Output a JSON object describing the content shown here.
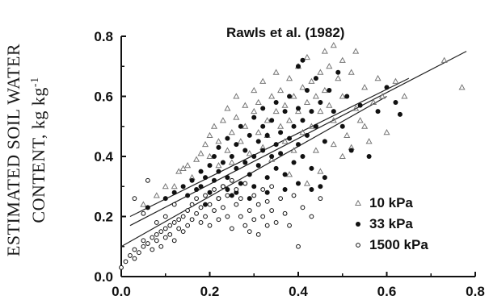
{
  "chart_data": {
    "type": "scatter",
    "title": "Rawls et al. (1982)",
    "ylabel_line1": "ESTIMATED SOIL WATER",
    "ylabel_line2_prefix": "CONTENT, kg kg",
    "ylabel_line2_sup": "-1",
    "xlabel": "",
    "xlim": [
      0.0,
      0.8
    ],
    "ylim": [
      0.0,
      0.8
    ],
    "x_ticks": [
      0.0,
      0.2,
      0.4,
      0.6,
      0.8
    ],
    "x_tick_labels": [
      "0.0",
      "0.2",
      "0.4",
      "0.6",
      "0.8"
    ],
    "y_ticks": [
      0.0,
      0.2,
      0.4,
      0.6,
      0.8
    ],
    "y_tick_labels": [
      "0.0",
      "0.2",
      "0.4",
      "0.6",
      "0.8"
    ],
    "grid": false,
    "legend_position": "bottom-right",
    "series": [
      {
        "name": "10 kPa",
        "marker": "triangle-open",
        "points": [
          [
            0.05,
            0.24
          ],
          [
            0.08,
            0.27
          ],
          [
            0.1,
            0.3
          ],
          [
            0.12,
            0.3
          ],
          [
            0.13,
            0.35
          ],
          [
            0.14,
            0.36
          ],
          [
            0.15,
            0.37
          ],
          [
            0.16,
            0.33
          ],
          [
            0.17,
            0.39
          ],
          [
            0.18,
            0.41
          ],
          [
            0.19,
            0.44
          ],
          [
            0.2,
            0.4
          ],
          [
            0.2,
            0.47
          ],
          [
            0.21,
            0.5
          ],
          [
            0.22,
            0.45
          ],
          [
            0.22,
            0.37
          ],
          [
            0.23,
            0.52
          ],
          [
            0.24,
            0.42
          ],
          [
            0.24,
            0.56
          ],
          [
            0.25,
            0.48
          ],
          [
            0.25,
            0.38
          ],
          [
            0.26,
            0.53
          ],
          [
            0.26,
            0.6
          ],
          [
            0.27,
            0.45
          ],
          [
            0.28,
            0.57
          ],
          [
            0.28,
            0.5
          ],
          [
            0.29,
            0.41
          ],
          [
            0.3,
            0.55
          ],
          [
            0.3,
            0.62
          ],
          [
            0.31,
            0.48
          ],
          [
            0.31,
            0.58
          ],
          [
            0.32,
            0.43
          ],
          [
            0.32,
            0.65
          ],
          [
            0.33,
            0.52
          ],
          [
            0.33,
            0.47
          ],
          [
            0.34,
            0.6
          ],
          [
            0.34,
            0.39
          ],
          [
            0.35,
            0.55
          ],
          [
            0.35,
            0.68
          ],
          [
            0.36,
            0.5
          ],
          [
            0.36,
            0.62
          ],
          [
            0.37,
            0.45
          ],
          [
            0.37,
            0.57
          ],
          [
            0.38,
            0.66
          ],
          [
            0.38,
            0.52
          ],
          [
            0.39,
            0.6
          ],
          [
            0.39,
            0.42
          ],
          [
            0.4,
            0.7
          ],
          [
            0.4,
            0.55
          ],
          [
            0.41,
            0.63
          ],
          [
            0.41,
            0.48
          ],
          [
            0.42,
            0.58
          ],
          [
            0.42,
            0.73
          ],
          [
            0.43,
            0.65
          ],
          [
            0.43,
            0.5
          ],
          [
            0.44,
            0.6
          ],
          [
            0.44,
            0.42
          ],
          [
            0.45,
            0.68
          ],
          [
            0.45,
            0.55
          ],
          [
            0.46,
            0.75
          ],
          [
            0.46,
            0.62
          ],
          [
            0.47,
            0.57
          ],
          [
            0.47,
            0.7
          ],
          [
            0.48,
            0.77
          ],
          [
            0.48,
            0.52
          ],
          [
            0.49,
            0.66
          ],
          [
            0.5,
            0.6
          ],
          [
            0.5,
            0.72
          ],
          [
            0.51,
            0.47
          ],
          [
            0.52,
            0.68
          ],
          [
            0.53,
            0.75
          ],
          [
            0.53,
            0.56
          ],
          [
            0.54,
            0.52
          ],
          [
            0.55,
            0.63
          ],
          [
            0.56,
            0.45
          ],
          [
            0.57,
            0.58
          ],
          [
            0.58,
            0.66
          ],
          [
            0.59,
            0.6
          ],
          [
            0.6,
            0.48
          ],
          [
            0.62,
            0.65
          ],
          [
            0.64,
            0.6
          ],
          [
            0.73,
            0.72
          ],
          [
            0.77,
            0.63
          ],
          [
            0.5,
            0.4
          ],
          [
            0.52,
            0.43
          ],
          [
            0.45,
            0.35
          ],
          [
            0.42,
            0.31
          ],
          [
            0.38,
            0.34
          ],
          [
            0.48,
            0.44
          ],
          [
            0.55,
            0.5
          ]
        ]
      },
      {
        "name": "33 kPa",
        "marker": "circle-filled",
        "points": [
          [
            0.06,
            0.23
          ],
          [
            0.1,
            0.26
          ],
          [
            0.12,
            0.28
          ],
          [
            0.14,
            0.3
          ],
          [
            0.15,
            0.27
          ],
          [
            0.16,
            0.32
          ],
          [
            0.17,
            0.29
          ],
          [
            0.18,
            0.35
          ],
          [
            0.18,
            0.3
          ],
          [
            0.19,
            0.33
          ],
          [
            0.2,
            0.37
          ],
          [
            0.2,
            0.28
          ],
          [
            0.21,
            0.4
          ],
          [
            0.21,
            0.32
          ],
          [
            0.22,
            0.35
          ],
          [
            0.22,
            0.43
          ],
          [
            0.23,
            0.3
          ],
          [
            0.23,
            0.38
          ],
          [
            0.24,
            0.46
          ],
          [
            0.24,
            0.33
          ],
          [
            0.25,
            0.4
          ],
          [
            0.25,
            0.27
          ],
          [
            0.26,
            0.44
          ],
          [
            0.26,
            0.36
          ],
          [
            0.27,
            0.5
          ],
          [
            0.27,
            0.31
          ],
          [
            0.28,
            0.42
          ],
          [
            0.28,
            0.38
          ],
          [
            0.29,
            0.47
          ],
          [
            0.29,
            0.34
          ],
          [
            0.3,
            0.53
          ],
          [
            0.3,
            0.4
          ],
          [
            0.3,
            0.3
          ],
          [
            0.31,
            0.45
          ],
          [
            0.31,
            0.37
          ],
          [
            0.32,
            0.5
          ],
          [
            0.32,
            0.42
          ],
          [
            0.32,
            0.56
          ],
          [
            0.33,
            0.33
          ],
          [
            0.33,
            0.47
          ],
          [
            0.34,
            0.4
          ],
          [
            0.34,
            0.52
          ],
          [
            0.35,
            0.44
          ],
          [
            0.35,
            0.36
          ],
          [
            0.35,
            0.58
          ],
          [
            0.36,
            0.48
          ],
          [
            0.36,
            0.41
          ],
          [
            0.37,
            0.55
          ],
          [
            0.37,
            0.34
          ],
          [
            0.38,
            0.46
          ],
          [
            0.38,
            0.6
          ],
          [
            0.39,
            0.5
          ],
          [
            0.39,
            0.38
          ],
          [
            0.4,
            0.44
          ],
          [
            0.4,
            0.56
          ],
          [
            0.4,
            0.7
          ],
          [
            0.41,
            0.52
          ],
          [
            0.41,
            0.4
          ],
          [
            0.42,
            0.62
          ],
          [
            0.42,
            0.47
          ],
          [
            0.43,
            0.55
          ],
          [
            0.43,
            0.36
          ],
          [
            0.44,
            0.66
          ],
          [
            0.44,
            0.5
          ],
          [
            0.45,
            0.58
          ],
          [
            0.45,
            0.3
          ],
          [
            0.46,
            0.45
          ],
          [
            0.47,
            0.62
          ],
          [
            0.48,
            0.55
          ],
          [
            0.49,
            0.68
          ],
          [
            0.5,
            0.5
          ],
          [
            0.51,
            0.6
          ],
          [
            0.52,
            0.42
          ],
          [
            0.54,
            0.57
          ],
          [
            0.56,
            0.4
          ],
          [
            0.58,
            0.55
          ],
          [
            0.6,
            0.63
          ],
          [
            0.62,
            0.58
          ],
          [
            0.63,
            0.54
          ],
          [
            0.41,
            0.72
          ],
          [
            0.26,
            0.28
          ],
          [
            0.29,
            0.26
          ],
          [
            0.33,
            0.28
          ],
          [
            0.37,
            0.29
          ],
          [
            0.4,
            0.31
          ],
          [
            0.43,
            0.29
          ],
          [
            0.46,
            0.33
          ],
          [
            0.22,
            0.26
          ],
          [
            0.19,
            0.24
          ],
          [
            0.24,
            0.29
          ]
        ]
      },
      {
        "name": "1500 kPa",
        "marker": "circle-open",
        "points": [
          [
            0.0,
            0.03
          ],
          [
            0.01,
            0.05
          ],
          [
            0.02,
            0.07
          ],
          [
            0.03,
            0.06
          ],
          [
            0.03,
            0.09
          ],
          [
            0.04,
            0.08
          ],
          [
            0.05,
            0.1
          ],
          [
            0.05,
            0.12
          ],
          [
            0.06,
            0.11
          ],
          [
            0.07,
            0.13
          ],
          [
            0.07,
            0.09
          ],
          [
            0.08,
            0.14
          ],
          [
            0.08,
            0.12
          ],
          [
            0.09,
            0.15
          ],
          [
            0.09,
            0.1
          ],
          [
            0.1,
            0.16
          ],
          [
            0.1,
            0.13
          ],
          [
            0.11,
            0.17
          ],
          [
            0.11,
            0.14
          ],
          [
            0.12,
            0.18
          ],
          [
            0.12,
            0.12
          ],
          [
            0.13,
            0.19
          ],
          [
            0.13,
            0.16
          ],
          [
            0.14,
            0.2
          ],
          [
            0.14,
            0.15
          ],
          [
            0.15,
            0.22
          ],
          [
            0.15,
            0.17
          ],
          [
            0.16,
            0.24
          ],
          [
            0.16,
            0.19
          ],
          [
            0.17,
            0.21
          ],
          [
            0.17,
            0.26
          ],
          [
            0.18,
            0.18
          ],
          [
            0.18,
            0.23
          ],
          [
            0.19,
            0.27
          ],
          [
            0.19,
            0.2
          ],
          [
            0.2,
            0.24
          ],
          [
            0.2,
            0.17
          ],
          [
            0.21,
            0.29
          ],
          [
            0.21,
            0.22
          ],
          [
            0.22,
            0.26
          ],
          [
            0.22,
            0.19
          ],
          [
            0.23,
            0.3
          ],
          [
            0.23,
            0.23
          ],
          [
            0.24,
            0.27
          ],
          [
            0.24,
            0.2
          ],
          [
            0.25,
            0.32
          ],
          [
            0.25,
            0.16
          ],
          [
            0.26,
            0.24
          ],
          [
            0.26,
            0.29
          ],
          [
            0.27,
            0.2
          ],
          [
            0.27,
            0.26
          ],
          [
            0.28,
            0.17
          ],
          [
            0.28,
            0.31
          ],
          [
            0.29,
            0.22
          ],
          [
            0.29,
            0.15
          ],
          [
            0.3,
            0.27
          ],
          [
            0.3,
            0.19
          ],
          [
            0.31,
            0.24
          ],
          [
            0.31,
            0.14
          ],
          [
            0.32,
            0.29
          ],
          [
            0.32,
            0.2
          ],
          [
            0.33,
            0.17
          ],
          [
            0.33,
            0.25
          ],
          [
            0.34,
            0.22
          ],
          [
            0.34,
            0.3
          ],
          [
            0.35,
            0.18
          ],
          [
            0.36,
            0.26
          ],
          [
            0.37,
            0.21
          ],
          [
            0.38,
            0.17
          ],
          [
            0.39,
            0.27
          ],
          [
            0.4,
            0.1
          ],
          [
            0.41,
            0.23
          ],
          [
            0.43,
            0.2
          ],
          [
            0.45,
            0.26
          ],
          [
            0.03,
            0.26
          ],
          [
            0.05,
            0.21
          ],
          [
            0.06,
            0.32
          ],
          [
            0.1,
            0.2
          ],
          [
            0.08,
            0.18
          ],
          [
            0.12,
            0.24
          ]
        ]
      }
    ],
    "fit_lines": [
      {
        "series": "10 kPa",
        "x": [
          0.02,
          0.78
        ],
        "y": [
          0.17,
          0.75
        ]
      },
      {
        "series": "33 kPa",
        "x": [
          0.02,
          0.65
        ],
        "y": [
          0.2,
          0.66
        ]
      },
      {
        "series": "1500 kPa",
        "x": [
          0.0,
          0.6
        ],
        "y": [
          0.1,
          0.6
        ]
      }
    ],
    "colors": {
      "axis": "#111111",
      "marker": "#111111",
      "triangle": "#777777",
      "fit_line": "#222222"
    }
  }
}
